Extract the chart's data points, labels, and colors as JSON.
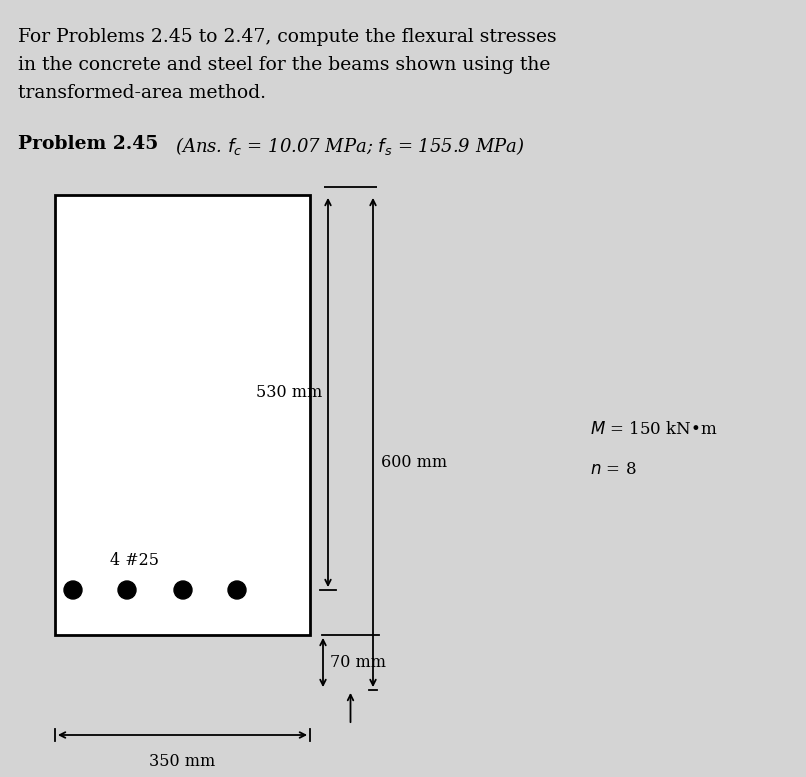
{
  "bg_color": "#d4d4d4",
  "header_text_line1": "For Problems 2.45 to 2.47, compute the flexural stresses",
  "header_text_line2": "in the concrete and steel for the beams shown using the",
  "header_text_line3": "transformed-area method.",
  "problem_bold": "Problem 2.45",
  "answer_italic": "(Ans. $f_c$ = 10.07 MPa; $f_s$ = 155.9 MPa)",
  "dim_530": "530 mm",
  "dim_600": "600 mm",
  "dim_70": "70 mm",
  "dim_350": "350 mm",
  "M_label": "$M$ = 150 kN•m",
  "n_label": "$n$ = 8",
  "steel_label": "4 #25",
  "beam_fill": "white",
  "beam_edge": "black",
  "line_color": "black",
  "font_size_header": 13.5,
  "font_size_problem": 13.5,
  "font_size_answer": 13,
  "font_size_dims": 11.5,
  "font_size_Mn": 12
}
